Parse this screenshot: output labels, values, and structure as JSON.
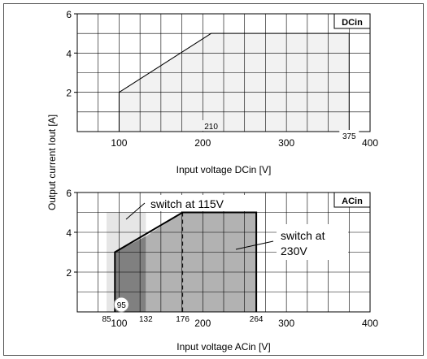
{
  "ylabel": "Output current Iout [A]",
  "chart_data": [
    {
      "type": "area",
      "title_box": "DCin",
      "xlabel": "Input voltage DCin [V]",
      "xlim": [
        50,
        400
      ],
      "ylim": [
        0,
        6
      ],
      "x_ticks": [
        100,
        200,
        300,
        400
      ],
      "y_ticks": [
        2,
        4,
        6
      ],
      "grid": true,
      "series": [
        {
          "fill": "#f2f2f2",
          "points": [
            [
              100,
              0
            ],
            [
              100,
              2
            ],
            [
              210,
              5
            ],
            [
              375,
              5
            ],
            [
              375,
              0
            ]
          ]
        }
      ],
      "annotations": [
        {
          "text": "210",
          "x": 210
        },
        {
          "text": "375",
          "x": 375
        }
      ]
    },
    {
      "type": "area",
      "title_box": "ACin",
      "xlabel": "Input voltage ACin [V]",
      "xlim": [
        50,
        400
      ],
      "ylim": [
        0,
        6
      ],
      "x_ticks": [
        100,
        200,
        300,
        400
      ],
      "y_ticks": [
        2,
        4,
        6
      ],
      "grid": true,
      "series": [
        {
          "fill": "#e6e6e6",
          "points": [
            [
              85,
              0
            ],
            [
              85,
              5
            ],
            [
              132,
              5
            ],
            [
              132,
              0
            ]
          ]
        },
        {
          "fill": "#b2b2b2",
          "points": [
            [
              132,
              0
            ],
            [
              132,
              3.8
            ],
            [
              176,
              5
            ],
            [
              264,
              5
            ],
            [
              264,
              0
            ]
          ]
        },
        {
          "fill": "#808080",
          "points": [
            [
              95,
              0
            ],
            [
              95,
              3
            ],
            [
              132,
              3.8
            ],
            [
              132,
              0
            ]
          ]
        }
      ],
      "outline": [
        [
          95,
          0
        ],
        [
          95,
          3
        ],
        [
          176,
          5
        ],
        [
          264,
          5
        ],
        [
          264,
          0
        ]
      ],
      "dashed_x": 176,
      "annotations": [
        {
          "text": "85",
          "x": 85
        },
        {
          "text": "132",
          "x": 132
        },
        {
          "text": "176",
          "x": 176
        },
        {
          "text": "264",
          "x": 264
        },
        {
          "text": "95",
          "x": 95
        }
      ],
      "callouts": [
        {
          "text": "switch at 115V"
        },
        {
          "text": "switch at",
          "text2": "230V"
        }
      ]
    }
  ]
}
